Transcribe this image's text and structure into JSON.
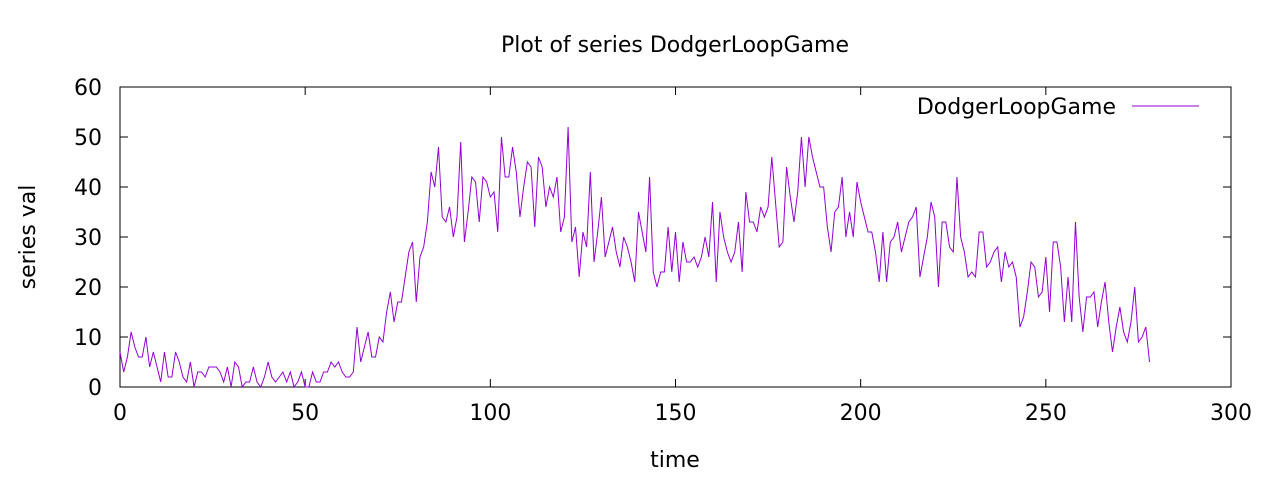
{
  "chart_data": {
    "type": "line",
    "title": "Plot of series DodgerLoopGame",
    "xlabel": "time",
    "ylabel": "series val",
    "xlim": [
      0,
      300
    ],
    "ylim": [
      0,
      60
    ],
    "x_ticks": [
      "0",
      "50",
      "100",
      "150",
      "200",
      "250",
      "300"
    ],
    "y_ticks": [
      "0",
      "10",
      "20",
      "30",
      "40",
      "50",
      "60"
    ],
    "grid": false,
    "legend_position": "top-right",
    "colors": {
      "series": "#9400d3",
      "axis": "#000000"
    },
    "series": [
      {
        "name": "DodgerLoopGame",
        "values": [
          7,
          3,
          6,
          11,
          8,
          6,
          6,
          10,
          4,
          7,
          4,
          1,
          7,
          2,
          2,
          7,
          5,
          2,
          1,
          5,
          0,
          3,
          3,
          2,
          4,
          4,
          4,
          3,
          1,
          4,
          0,
          5,
          4,
          0,
          1,
          1,
          4,
          1,
          0,
          2,
          5,
          2,
          1,
          2,
          3,
          1,
          3,
          0,
          1,
          3,
          0,
          0,
          3,
          1,
          1,
          3,
          3,
          5,
          4,
          5,
          3,
          2,
          2,
          3,
          12,
          5,
          8,
          11,
          6,
          6,
          10,
          9,
          15,
          19,
          13,
          17,
          17,
          22,
          27,
          29,
          17,
          26,
          28,
          33,
          43,
          40,
          48,
          34,
          33,
          36,
          30,
          34,
          49,
          29,
          35,
          42,
          41,
          33,
          42,
          41,
          38,
          39,
          31,
          50,
          42,
          42,
          48,
          43,
          34,
          40,
          45,
          44,
          32,
          46,
          44,
          36,
          40,
          38,
          42,
          31,
          34,
          52,
          29,
          32,
          22,
          31,
          28,
          43,
          25,
          31,
          38,
          26,
          29,
          32,
          27,
          24,
          30,
          28,
          25,
          21,
          35,
          31,
          27,
          42,
          23,
          20,
          23,
          23,
          32,
          23,
          31,
          21,
          29,
          25,
          25,
          26,
          24,
          26,
          30,
          26,
          37,
          21,
          35,
          30,
          27,
          25,
          27,
          33,
          23,
          39,
          33,
          33,
          31,
          36,
          34,
          36,
          46,
          37,
          28,
          29,
          44,
          38,
          33,
          39,
          50,
          40,
          50,
          46,
          43,
          40,
          40,
          32,
          27,
          35,
          36,
          42,
          30,
          35,
          30,
          41,
          37,
          34,
          31,
          31,
          27,
          21,
          31,
          21,
          29,
          30,
          33,
          27,
          30,
          33,
          34,
          36,
          22,
          26,
          30,
          37,
          34,
          20,
          33,
          33,
          28,
          27,
          42,
          30,
          27,
          22,
          23,
          22,
          31,
          31,
          24,
          25,
          27,
          28,
          21,
          27,
          24,
          25,
          22,
          12,
          14,
          19,
          25,
          24,
          18,
          19,
          26,
          15,
          29,
          29,
          24,
          13,
          22,
          13,
          33,
          18,
          11,
          18,
          18,
          19,
          12,
          17,
          21,
          13,
          7,
          12,
          16,
          11,
          9,
          13,
          20,
          9,
          10,
          12,
          5
        ]
      }
    ]
  }
}
